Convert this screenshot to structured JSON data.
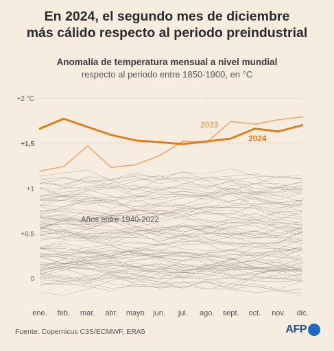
{
  "title": {
    "line1": "En 2024, el segundo mes de diciembre",
    "line2": "más cálido respecto al periodo preindustrial"
  },
  "subtitle": {
    "line1": "Anomalía de temperatura mensual a nivel mundial",
    "line2": "respecto al periodo entre 1850-1900, en °C"
  },
  "footer": {
    "source": "Fuente: Copernicus C3S/ECMWF, ERA5"
  },
  "logo": {
    "text": "AFP"
  },
  "colors": {
    "background": "#f6ecdf",
    "series_2024": "#e07a16",
    "series_2023": "#f0a766",
    "historical": "#8a7f72",
    "grid": "#b8afa5"
  },
  "chart_data": {
    "type": "line",
    "categories": [
      "ene.",
      "feb.",
      "mar.",
      "abr.",
      "mayo",
      "jun.",
      "jul.",
      "ago.",
      "sept.",
      "oct.",
      "nov.",
      "dic."
    ],
    "y_ticks": [
      {
        "value": 2,
        "label": "+2 °C"
      },
      {
        "value": 1.5,
        "label": "+1,5"
      },
      {
        "value": 1,
        "label": "+1"
      },
      {
        "value": 0.5,
        "label": "+0,5"
      },
      {
        "value": 0,
        "label": "0"
      }
    ],
    "ylim": [
      -0.2,
      2.05
    ],
    "grid": true,
    "series": [
      {
        "name": "2024",
        "values": [
          1.66,
          1.77,
          1.68,
          1.59,
          1.53,
          1.51,
          1.49,
          1.52,
          1.55,
          1.66,
          1.63,
          1.7
        ]
      },
      {
        "name": "2023",
        "values": [
          1.19,
          1.24,
          1.47,
          1.23,
          1.26,
          1.36,
          1.52,
          1.51,
          1.74,
          1.71,
          1.76,
          1.79
        ]
      }
    ],
    "background_range": {
      "label": "Años entre 1940-2022",
      "start_year": 1940,
      "end_year": 2022
    }
  }
}
